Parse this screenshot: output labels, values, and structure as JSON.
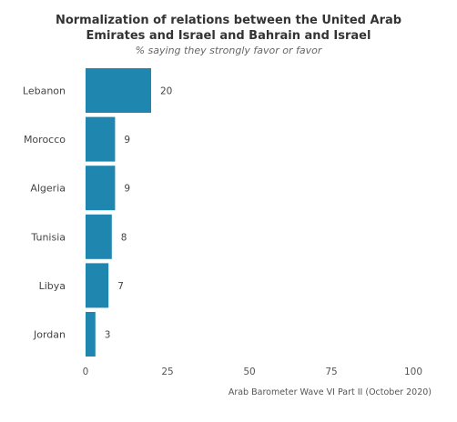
{
  "chart_data": {
    "type": "bar",
    "orientation": "horizontal",
    "title_lines": [
      "Normalization of relations between the United Arab",
      "Emirates and Israel and Bahrain and Israel"
    ],
    "subtitle": "% saying they strongly favor or favor",
    "categories": [
      "Lebanon",
      "Morocco",
      "Algeria",
      "Tunisia",
      "Libya",
      "Jordan"
    ],
    "values": [
      20,
      9,
      9,
      8,
      7,
      3
    ],
    "xlim": [
      0,
      100
    ],
    "xticks": [
      0,
      25,
      50,
      75,
      100
    ],
    "grid": false,
    "bar_color": "#1f86b0",
    "source": "Arab Barometer Wave VI Part II (October 2020)"
  }
}
